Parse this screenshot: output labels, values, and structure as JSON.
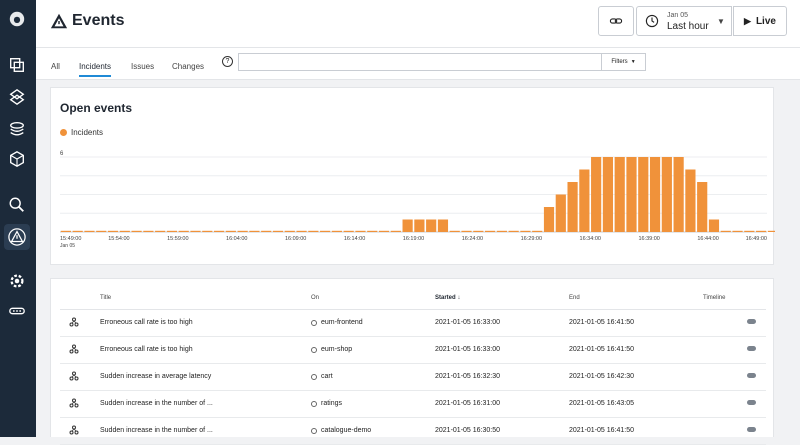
{
  "page": {
    "title": "Events"
  },
  "time_picker": {
    "date": "Jan 05",
    "range": "Last hour"
  },
  "live_label": "Live",
  "tabs": [
    "All",
    "Incidents",
    "Issues",
    "Changes"
  ],
  "active_tab": "Incidents",
  "search": {
    "placeholder": ""
  },
  "filters_label": "Filters",
  "chart_title": "Open events",
  "chart_data": {
    "type": "bar",
    "title": "Open events",
    "series": [
      {
        "name": "Incidents",
        "color": "#f0923a"
      }
    ],
    "ylim": [
      0,
      6
    ],
    "y_tick_labels": [
      "6"
    ],
    "x_tick_labels": [
      "15:49:00",
      "15:54:00",
      "15:59:00",
      "16:04:00",
      "16:09:00",
      "16:14:00",
      "16:19:00",
      "16:24:00",
      "16:29:00",
      "16:34:00",
      "16:39:00",
      "16:44:00",
      "16:49:00"
    ],
    "x_first_sub_label": "Jan 05",
    "bin_minutes": 1,
    "start_time": "15:49:00",
    "values": [
      0,
      0,
      0,
      0,
      0,
      0,
      0,
      0,
      0,
      0,
      0,
      0,
      0,
      0,
      0,
      0,
      0,
      0,
      0,
      0,
      0,
      0,
      0,
      0,
      0,
      0,
      0,
      0,
      0,
      1,
      1,
      1,
      1,
      0,
      0,
      0,
      0,
      0,
      0,
      0,
      0,
      2,
      3,
      4,
      5,
      6,
      6,
      6,
      6,
      6,
      6,
      6,
      6,
      5,
      4,
      1,
      0,
      0,
      0,
      0,
      0
    ],
    "grid": true
  },
  "table": {
    "columns": [
      "",
      "Title",
      "On",
      "Started",
      "End",
      "Timeline"
    ],
    "sorted_column": "Started",
    "rows": [
      {
        "title": "Erroneous call rate is too high",
        "on": "eum-frontend",
        "started": "2021-01-05 16:33:00",
        "end": "2021-01-05 16:41:50"
      },
      {
        "title": "Erroneous call rate is too high",
        "on": "eum-shop",
        "started": "2021-01-05 16:33:00",
        "end": "2021-01-05 16:41:50"
      },
      {
        "title": "Sudden increase in average latency",
        "on": "cart",
        "started": "2021-01-05 16:32:30",
        "end": "2021-01-05 16:42:30"
      },
      {
        "title": "Sudden increase in the number of ...",
        "on": "ratings",
        "started": "2021-01-05 16:31:00",
        "end": "2021-01-05 16:43:05"
      },
      {
        "title": "Sudden increase in the number of ...",
        "on": "catalogue-demo",
        "started": "2021-01-05 16:30:50",
        "end": "2021-01-05 16:41:50"
      }
    ]
  }
}
